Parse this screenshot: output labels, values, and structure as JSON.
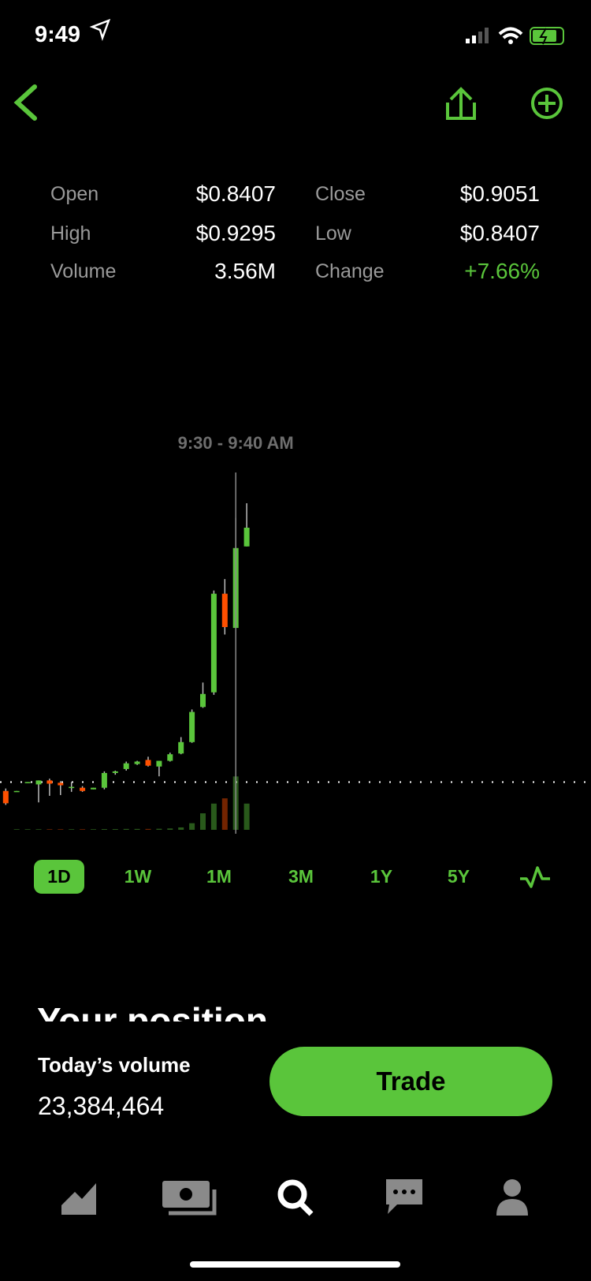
{
  "status_bar": {
    "time": "9:49"
  },
  "stats": [
    {
      "label": "Open",
      "value": "$0.8407"
    },
    {
      "label": "Close",
      "value": "$0.9051"
    },
    {
      "label": "High",
      "value": "$0.9295"
    },
    {
      "label": "Low",
      "value": "$0.8407"
    },
    {
      "label": "Volume",
      "value": "3.56M"
    },
    {
      "label": "Change",
      "value": "+7.66%"
    }
  ],
  "chart": {
    "type": "candlestick",
    "selection_label": "9:30 - 9:40 AM",
    "ylim": [
      0.678,
      0.966
    ],
    "volume_lim": [
      0,
      4000000
    ],
    "reference_line": 0.7165,
    "up_color": "#5ac53b",
    "down_color": "#ff5000",
    "candles": [
      {
        "open": 0.7093,
        "high": 0.7113,
        "low": 0.6981,
        "close": 0.6994,
        "volume": 0
      },
      {
        "open": 0.7086,
        "high": 0.7093,
        "low": 0.7086,
        "close": 0.7093,
        "volume": 40000
      },
      {
        "open": 0.7159,
        "high": 0.7165,
        "low": 0.7159,
        "close": 0.7165,
        "volume": 40000
      },
      {
        "open": 0.7146,
        "high": 0.7178,
        "low": 0.7001,
        "close": 0.7178,
        "volume": 40000
      },
      {
        "open": 0.7178,
        "high": 0.7192,
        "low": 0.7054,
        "close": 0.7152,
        "volume": 40000
      },
      {
        "open": 0.7159,
        "high": 0.7172,
        "low": 0.706,
        "close": 0.7139,
        "volume": 40000
      },
      {
        "open": 0.7119,
        "high": 0.7165,
        "low": 0.7086,
        "close": 0.7126,
        "volume": 40000
      },
      {
        "open": 0.7119,
        "high": 0.7132,
        "low": 0.7086,
        "close": 0.7093,
        "volume": 40000
      },
      {
        "open": 0.7106,
        "high": 0.7119,
        "low": 0.7106,
        "close": 0.7119,
        "volume": 40000
      },
      {
        "open": 0.7119,
        "high": 0.7251,
        "low": 0.7106,
        "close": 0.7238,
        "volume": 50000
      },
      {
        "open": 0.7238,
        "high": 0.7257,
        "low": 0.7224,
        "close": 0.7251,
        "volume": 50000
      },
      {
        "open": 0.727,
        "high": 0.733,
        "low": 0.7257,
        "close": 0.7316,
        "volume": 60000
      },
      {
        "open": 0.731,
        "high": 0.7336,
        "low": 0.7303,
        "close": 0.733,
        "volume": 60000
      },
      {
        "open": 0.7343,
        "high": 0.7369,
        "low": 0.729,
        "close": 0.7297,
        "volume": 60000
      },
      {
        "open": 0.729,
        "high": 0.7336,
        "low": 0.7211,
        "close": 0.7336,
        "volume": 70000
      },
      {
        "open": 0.7336,
        "high": 0.7402,
        "low": 0.733,
        "close": 0.7389,
        "volume": 90000
      },
      {
        "open": 0.7395,
        "high": 0.7527,
        "low": 0.7389,
        "close": 0.7487,
        "volume": 160000
      },
      {
        "open": 0.7487,
        "high": 0.775,
        "low": 0.7481,
        "close": 0.773,
        "volume": 440000
      },
      {
        "open": 0.777,
        "high": 0.7967,
        "low": 0.7763,
        "close": 0.7875,
        "volume": 1100000
      },
      {
        "open": 0.7888,
        "high": 0.8709,
        "low": 0.7868,
        "close": 0.8683,
        "volume": 1750000
      },
      {
        "open": 0.8683,
        "high": 0.8801,
        "low": 0.8354,
        "close": 0.8414,
        "volume": 2100000
      },
      {
        "open": 0.8407,
        "high": 0.9295,
        "low": 0.8407,
        "close": 0.9051,
        "volume": 3560000
      },
      {
        "open": 0.9064,
        "high": 0.9412,
        "low": 0.9064,
        "close": 0.9215,
        "volume": 1750000
      }
    ]
  },
  "ranges": [
    "1D",
    "1W",
    "1M",
    "3M",
    "1Y",
    "5Y"
  ],
  "section_title": "Your position",
  "footer": {
    "volume_label": "Today’s volume",
    "volume_value": "23,384,464",
    "trade_button": "Trade"
  }
}
